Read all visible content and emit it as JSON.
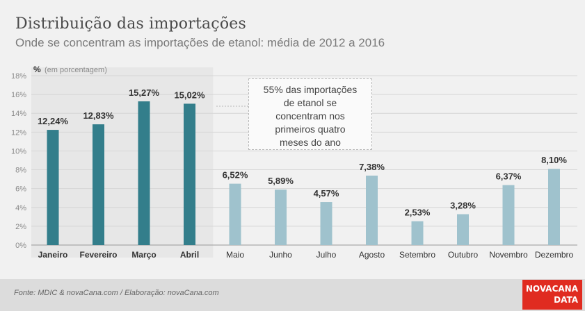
{
  "header": {
    "title": "Distribuição das importações",
    "subtitle": "Onde se concentram as importações de etanol: média de 2012 a 2016"
  },
  "footer": {
    "source": "Fonte: MDIC & novaCana.com / Elaboração: novaCana.com",
    "logo_line1": "NOVACANA",
    "logo_line2": "DATA",
    "logo_color": "#e02b20"
  },
  "annotation": {
    "lines": [
      "55% das importações",
      "de etanol se",
      "concentram nos",
      "primeiros quatro",
      "meses do ano"
    ]
  },
  "chart_data": {
    "type": "bar",
    "ylabel": "%",
    "ylabel_note": "(em porcentagem)",
    "ylim": [
      0,
      18
    ],
    "yticks": [
      "0%",
      "2%",
      "4%",
      "6%",
      "8%",
      "10%",
      "12%",
      "14%",
      "16%",
      "18%"
    ],
    "grid": true,
    "categories": [
      "Janeiro",
      "Fevereiro",
      "Março",
      "Abril",
      "Maio",
      "Junho",
      "Julho",
      "Agosto",
      "Setembro",
      "Outubro",
      "Novembro",
      "Dezembro"
    ],
    "values": [
      12.24,
      12.83,
      15.27,
      15.02,
      6.52,
      5.89,
      4.57,
      7.38,
      2.53,
      3.28,
      6.37,
      8.1
    ],
    "labels": [
      "12,24%",
      "12,83%",
      "15,27%",
      "15,02%",
      "6,52%",
      "5,89%",
      "4,57%",
      "7,38%",
      "2,53%",
      "3,28%",
      "6,37%",
      "8,10%"
    ],
    "highlight_count": 4,
    "colors": {
      "highlight": "#337e8b",
      "normal": "#9fc2cd",
      "highlight_band": "#e7e7e7"
    }
  }
}
